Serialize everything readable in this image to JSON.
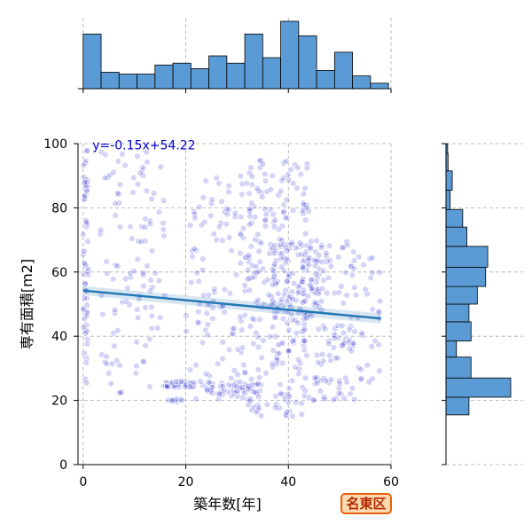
{
  "chart_data": [
    {
      "type": "scatter",
      "xlabel": "築年数[年]",
      "ylabel": "専有面積[m2]",
      "xlim": [
        -1,
        60
      ],
      "ylim": [
        0,
        100
      ],
      "xticks": [
        0,
        20,
        40,
        60
      ],
      "yticks": [
        0,
        20,
        40,
        60,
        80,
        100
      ],
      "grid": true,
      "point_color": "#0000cc",
      "regression": {
        "slope": -0.15,
        "intercept": 54.22,
        "x_range": [
          0,
          58
        ],
        "color": "#1f77b4",
        "label": "y=-0.15x+54.22"
      },
      "clusters": [
        {
          "x": [
            0,
            1
          ],
          "y": [
            25,
            98
          ],
          "n": 60
        },
        {
          "x": [
            3,
            16
          ],
          "y": [
            22,
            98
          ],
          "n": 110
        },
        {
          "x": [
            16,
            22
          ],
          "y": [
            24,
            26
          ],
          "n": 35
        },
        {
          "x": [
            16,
            20
          ],
          "y": [
            19.5,
            20.5
          ],
          "n": 10
        },
        {
          "x": [
            20,
            32
          ],
          "y": [
            20,
            90
          ],
          "n": 120
        },
        {
          "x": [
            24,
            35
          ],
          "y": [
            22,
            26
          ],
          "n": 40
        },
        {
          "x": [
            32,
            44
          ],
          "y": [
            15,
            97
          ],
          "n": 260
        },
        {
          "x": [
            36,
            46
          ],
          "y": [
            45,
            70
          ],
          "n": 90
        },
        {
          "x": [
            44,
            53
          ],
          "y": [
            20,
            70
          ],
          "n": 110
        },
        {
          "x": [
            52,
            58
          ],
          "y": [
            25,
            67
          ],
          "n": 35
        }
      ]
    },
    {
      "type": "bar",
      "orientation": "vertical",
      "title": "",
      "bin_width": 3.5,
      "bin_start": 0,
      "values": [
        30,
        9,
        8,
        8,
        13,
        14,
        11,
        18,
        14,
        30,
        17,
        37,
        29,
        10,
        20,
        7,
        3
      ],
      "color": "#5b9bd5"
    },
    {
      "type": "bar",
      "orientation": "horizontal",
      "title": "",
      "bin_edges": [
        15.5,
        21,
        27,
        33.5,
        38.5,
        44.5,
        50,
        55.5,
        61.5,
        68,
        74,
        79.5,
        85.5,
        91.5,
        97,
        100
      ],
      "values": [
        11,
        31,
        12,
        5,
        12,
        11,
        15,
        19,
        20,
        10,
        8,
        2,
        3,
        1,
        0.8
      ],
      "color": "#5b9bd5"
    }
  ],
  "badge": {
    "label": "名東区"
  }
}
